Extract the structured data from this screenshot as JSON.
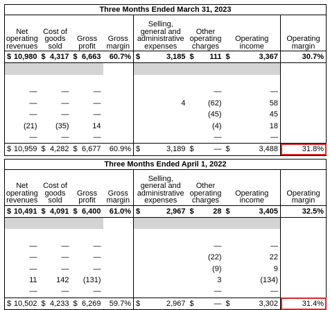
{
  "columns": [
    "Net operating revenues",
    "Cost of goods sold",
    "Gross profit",
    "Gross margin",
    "Selling, general and administrative expenses",
    "Other operating charges",
    "Operating income",
    "Operating margin"
  ],
  "tables": [
    {
      "title": "Three Months Ended March 31, 2023",
      "rows": [
        [
          {
            "currency": "$",
            "value": "10,980"
          },
          {
            "currency": "$",
            "value": "4,317"
          },
          {
            "currency": "$",
            "value": "6,663"
          },
          "60.7%",
          {
            "currency": "$",
            "value": "3,185"
          },
          {
            "currency": "$",
            "value": "111"
          },
          {
            "currency": "$",
            "value": "3,367"
          },
          "30.7%"
        ],
        [
          null,
          null,
          null,
          null,
          null,
          null,
          null,
          null
        ],
        [
          null,
          null,
          null,
          null,
          null,
          null,
          null,
          null
        ],
        [
          "—",
          "—",
          "—",
          null,
          null,
          "—",
          "—",
          null
        ],
        [
          "—",
          "—",
          "—",
          null,
          "4",
          "(62)",
          "58",
          null
        ],
        [
          "—",
          "—",
          "—",
          null,
          null,
          "(45)",
          "45",
          null
        ],
        [
          "(21)",
          "(35)",
          "14",
          null,
          null,
          "(4)",
          "18",
          null
        ],
        [
          "—",
          "—",
          "—",
          null,
          null,
          "—",
          "—",
          null
        ],
        [
          {
            "currency": "$",
            "value": "10,959"
          },
          {
            "currency": "$",
            "value": "4,282"
          },
          {
            "currency": "$",
            "value": "6,677"
          },
          "60.9%",
          {
            "currency": "$",
            "value": "3,189"
          },
          {
            "currency": "$",
            "value": "—"
          },
          {
            "currency": "$",
            "value": "3,488"
          },
          "31.8%"
        ]
      ]
    },
    {
      "title": "Three Months Ended April 1, 2022",
      "rows": [
        [
          {
            "currency": "$",
            "value": "10,491"
          },
          {
            "currency": "$",
            "value": "4,091"
          },
          {
            "currency": "$",
            "value": "6,400"
          },
          "61.0%",
          {
            "currency": "$",
            "value": "2,967"
          },
          {
            "currency": "$",
            "value": "28"
          },
          {
            "currency": "$",
            "value": "3,405"
          },
          "32.5%"
        ],
        [
          null,
          null,
          null,
          null,
          null,
          null,
          null,
          null
        ],
        [
          null,
          null,
          null,
          null,
          null,
          null,
          null,
          null
        ],
        [
          "—",
          "—",
          "—",
          null,
          null,
          "—",
          "—",
          null
        ],
        [
          "—",
          "—",
          "—",
          null,
          null,
          "(22)",
          "22",
          null
        ],
        [
          "—",
          "—",
          "—",
          null,
          null,
          "(9)",
          "9",
          null
        ],
        [
          "11",
          "142",
          "(131)",
          null,
          null,
          "3",
          "(134)",
          null
        ],
        [
          "—",
          "—",
          "—",
          null,
          null,
          "—",
          "—",
          null
        ],
        [
          {
            "currency": "$",
            "value": "10,502"
          },
          {
            "currency": "$",
            "value": "4,233"
          },
          {
            "currency": "$",
            "value": "6,269"
          },
          "59.7%",
          {
            "currency": "$",
            "value": "2,967"
          },
          {
            "currency": "$",
            "value": "—"
          },
          {
            "currency": "$",
            "value": "3,302"
          },
          "31.4%"
        ]
      ]
    }
  ]
}
